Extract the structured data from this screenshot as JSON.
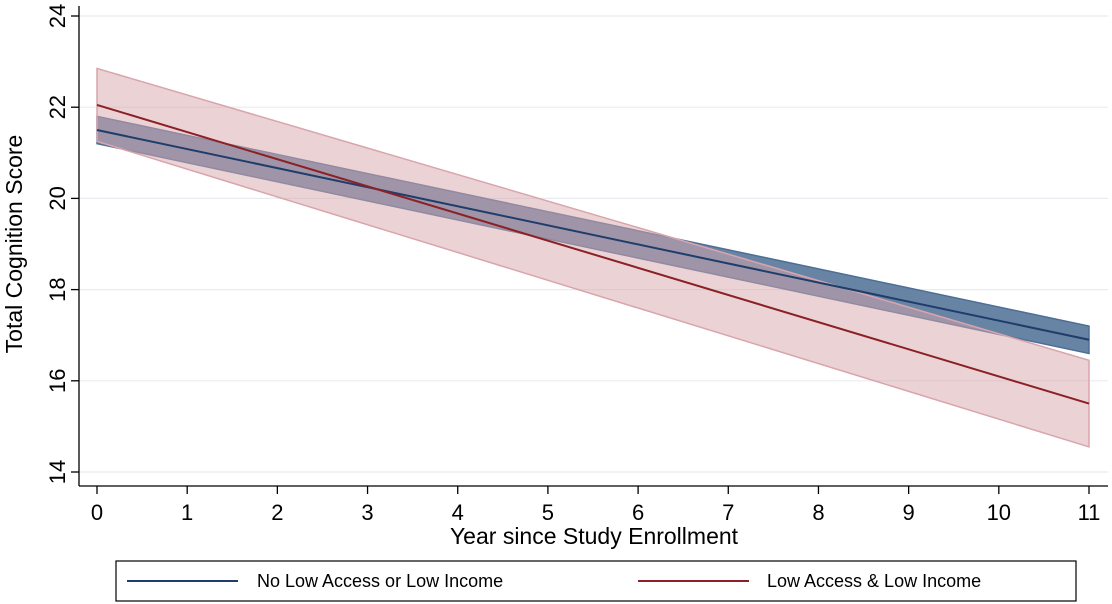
{
  "chart_data": {
    "type": "line",
    "title": "",
    "xlabel": "Year since Study Enrollment",
    "ylabel": "Total Cognition Score",
    "xlim": [
      0,
      11
    ],
    "ylim": [
      14,
      24
    ],
    "xticks": [
      0,
      1,
      2,
      3,
      4,
      5,
      6,
      7,
      8,
      9,
      10,
      11
    ],
    "yticks": [
      14,
      16,
      18,
      20,
      22,
      24
    ],
    "grid": "horizontal",
    "legend_position": "bottom",
    "series": [
      {
        "name": "No Low Access or Low Income",
        "color": "#1f3d6b",
        "band_color": "#4d6e95",
        "x": [
          0,
          11
        ],
        "y": [
          21.5,
          16.9
        ],
        "ci_lower": [
          21.2,
          16.6
        ],
        "ci_upper": [
          21.8,
          17.2
        ]
      },
      {
        "name": "Low Access & Low Income",
        "color": "#8b2025",
        "band_color": "#d8a5ac",
        "x": [
          0,
          11
        ],
        "y": [
          22.05,
          15.5
        ],
        "ci_lower": [
          21.25,
          14.55
        ],
        "ci_upper": [
          22.85,
          16.45
        ]
      }
    ]
  }
}
